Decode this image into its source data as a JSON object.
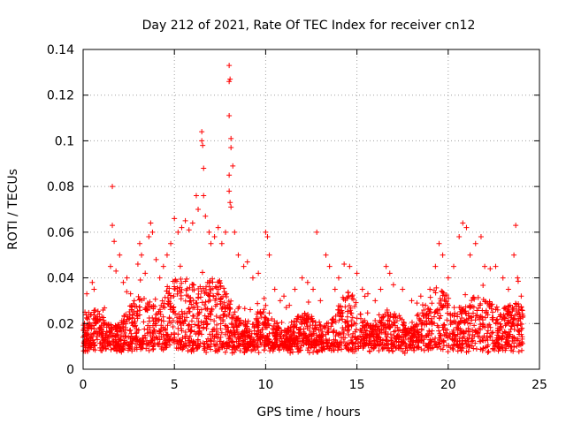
{
  "chart_data": {
    "type": "scatter",
    "title": "Day 212 of 2021, Rate Of TEC Index for receiver cn12",
    "xlabel": "GPS time / hours",
    "ylabel": "ROTI / TECUs",
    "xlim": [
      0,
      25
    ],
    "ylim": [
      0,
      0.14
    ],
    "xticks": [
      0,
      5,
      10,
      15,
      20,
      25
    ],
    "xtick_labels": [
      "0",
      "5",
      "10",
      "15",
      "20",
      "25"
    ],
    "yticks": [
      0,
      0.02,
      0.04,
      0.06,
      0.08,
      0.1,
      0.12,
      0.14
    ],
    "ytick_labels": [
      "0",
      "0.02",
      "0.04",
      "0.06",
      "0.08",
      "0.1",
      "0.12",
      "0.14"
    ],
    "grid": true,
    "marker": "plus",
    "marker_color": "#ff0000",
    "series": [
      {
        "name": "ROTI",
        "points": [
          [
            0.0,
            0.014
          ],
          [
            0.1,
            0.025
          ],
          [
            0.2,
            0.033
          ],
          [
            0.3,
            0.018
          ],
          [
            0.5,
            0.038
          ],
          [
            0.6,
            0.035
          ],
          [
            0.8,
            0.022
          ],
          [
            1.0,
            0.015
          ],
          [
            1.2,
            0.02
          ],
          [
            1.5,
            0.045
          ],
          [
            1.6,
            0.08
          ],
          [
            1.6,
            0.063
          ],
          [
            1.7,
            0.056
          ],
          [
            1.8,
            0.043
          ],
          [
            2.0,
            0.05
          ],
          [
            2.2,
            0.038
          ],
          [
            2.4,
            0.04
          ],
          [
            2.6,
            0.033
          ],
          [
            2.8,
            0.03
          ],
          [
            3.0,
            0.046
          ],
          [
            3.1,
            0.055
          ],
          [
            3.2,
            0.05
          ],
          [
            3.4,
            0.042
          ],
          [
            3.6,
            0.058
          ],
          [
            3.7,
            0.064
          ],
          [
            3.8,
            0.06
          ],
          [
            4.0,
            0.048
          ],
          [
            4.2,
            0.04
          ],
          [
            4.4,
            0.045
          ],
          [
            4.6,
            0.05
          ],
          [
            4.8,
            0.055
          ],
          [
            5.0,
            0.066
          ],
          [
            5.2,
            0.06
          ],
          [
            5.4,
            0.062
          ],
          [
            5.6,
            0.065
          ],
          [
            5.8,
            0.061
          ],
          [
            6.0,
            0.064
          ],
          [
            6.2,
            0.076
          ],
          [
            6.3,
            0.07
          ],
          [
            6.5,
            0.104
          ],
          [
            6.5,
            0.1
          ],
          [
            6.55,
            0.098
          ],
          [
            6.6,
            0.088
          ],
          [
            6.6,
            0.076
          ],
          [
            6.7,
            0.067
          ],
          [
            6.9,
            0.06
          ],
          [
            7.0,
            0.055
          ],
          [
            7.2,
            0.058
          ],
          [
            7.4,
            0.062
          ],
          [
            7.6,
            0.055
          ],
          [
            7.8,
            0.06
          ],
          [
            8.0,
            0.133
          ],
          [
            8.05,
            0.127
          ],
          [
            8.0,
            0.126
          ],
          [
            8.0,
            0.111
          ],
          [
            8.1,
            0.101
          ],
          [
            8.1,
            0.097
          ],
          [
            8.2,
            0.089
          ],
          [
            8.0,
            0.085
          ],
          [
            8.0,
            0.078
          ],
          [
            8.05,
            0.073
          ],
          [
            8.1,
            0.071
          ],
          [
            8.3,
            0.06
          ],
          [
            8.5,
            0.05
          ],
          [
            8.8,
            0.045
          ],
          [
            9.0,
            0.047
          ],
          [
            9.3,
            0.04
          ],
          [
            9.6,
            0.042
          ],
          [
            10.0,
            0.06
          ],
          [
            10.1,
            0.058
          ],
          [
            10.2,
            0.05
          ],
          [
            10.5,
            0.035
          ],
          [
            10.8,
            0.03
          ],
          [
            11.0,
            0.032
          ],
          [
            11.3,
            0.028
          ],
          [
            11.6,
            0.035
          ],
          [
            12.0,
            0.04
          ],
          [
            12.3,
            0.038
          ],
          [
            12.6,
            0.035
          ],
          [
            12.8,
            0.06
          ],
          [
            13.0,
            0.03
          ],
          [
            13.3,
            0.05
          ],
          [
            13.5,
            0.045
          ],
          [
            13.8,
            0.035
          ],
          [
            14.0,
            0.04
          ],
          [
            14.3,
            0.046
          ],
          [
            14.6,
            0.045
          ],
          [
            15.0,
            0.042
          ],
          [
            15.3,
            0.035
          ],
          [
            15.6,
            0.033
          ],
          [
            16.0,
            0.03
          ],
          [
            16.3,
            0.035
          ],
          [
            16.6,
            0.045
          ],
          [
            16.8,
            0.042
          ],
          [
            17.0,
            0.037
          ],
          [
            17.5,
            0.035
          ],
          [
            18.0,
            0.03
          ],
          [
            18.5,
            0.032
          ],
          [
            19.0,
            0.035
          ],
          [
            19.3,
            0.045
          ],
          [
            19.5,
            0.055
          ],
          [
            19.7,
            0.05
          ],
          [
            20.0,
            0.04
          ],
          [
            20.3,
            0.045
          ],
          [
            20.6,
            0.058
          ],
          [
            20.8,
            0.064
          ],
          [
            21.0,
            0.062
          ],
          [
            21.2,
            0.05
          ],
          [
            21.5,
            0.055
          ],
          [
            21.8,
            0.058
          ],
          [
            22.0,
            0.045
          ],
          [
            22.3,
            0.044
          ],
          [
            22.6,
            0.045
          ],
          [
            23.0,
            0.04
          ],
          [
            23.3,
            0.035
          ],
          [
            23.6,
            0.05
          ],
          [
            23.7,
            0.063
          ],
          [
            23.8,
            0.04
          ],
          [
            24.0,
            0.032
          ]
        ]
      }
    ],
    "band_note": "Dense cloud of points between roughly 0.008 and 0.03 TECU across the full day, with elevated activity near 3-9 h and 19-24 h"
  }
}
